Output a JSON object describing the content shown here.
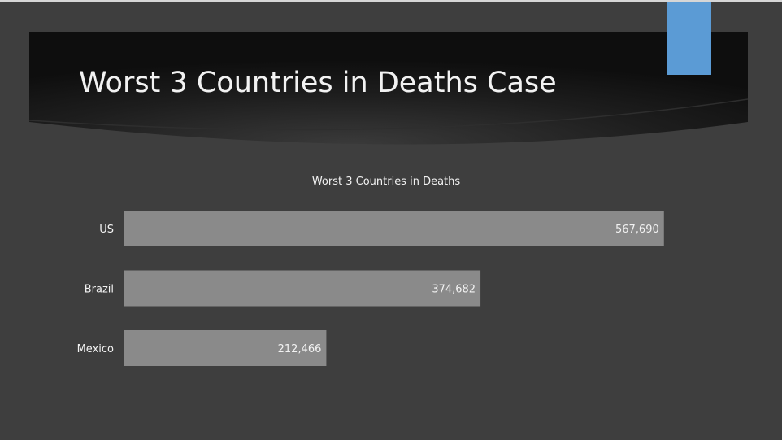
{
  "slide": {
    "title": "Worst 3 Countries in Deaths Case"
  },
  "colors": {
    "background": "#3e3e3e",
    "banner": "#1a1a1a",
    "accent": "#5b9bd5",
    "bar": "#8a8a8a",
    "text": "#f2f2f2"
  },
  "chart_data": {
    "type": "bar",
    "orientation": "horizontal",
    "title": "Worst 3 Countries in Deaths",
    "categories": [
      "US",
      "Brazil",
      "Mexico"
    ],
    "values": [
      567690,
      374682,
      212466
    ],
    "data_labels": [
      "567,690",
      "374,682",
      "212,466"
    ],
    "xlim": [
      0,
      650000
    ],
    "grid": false,
    "legend": "none"
  }
}
